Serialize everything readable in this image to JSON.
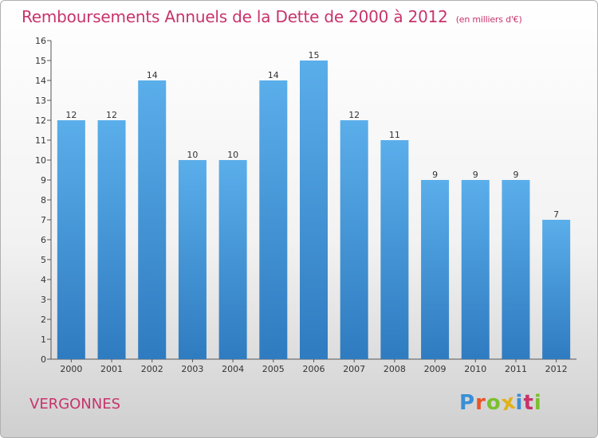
{
  "header": {
    "title": "Remboursements Annuels de la Dette de 2000 à 2012",
    "subtitle": "(en milliers d'€)"
  },
  "footer": {
    "commune": "VERGONNES",
    "brand_letters": [
      "P",
      "r",
      "o",
      "x",
      "i",
      "t",
      "i"
    ],
    "brand_colors": [
      "#3a8fd6",
      "#e8542a",
      "#7cbf2e",
      "#e0b21a",
      "#3a8fd6",
      "#c8336b",
      "#7cbf2e"
    ]
  },
  "colors": {
    "bar_top": "#5aaeea",
    "bar_bottom": "#2f7bc0",
    "title": "#c8336b"
  },
  "chart_data": {
    "type": "bar",
    "categories": [
      "2000",
      "2001",
      "2002",
      "2003",
      "2004",
      "2005",
      "2006",
      "2007",
      "2008",
      "2009",
      "2010",
      "2011",
      "2012"
    ],
    "values": [
      12,
      12,
      14,
      10,
      10,
      14,
      15,
      12,
      11,
      9,
      9,
      9,
      7
    ],
    "title": "Remboursements Annuels de la Dette de 2000 à 2012",
    "subtitle": "(en milliers d'€)",
    "xlabel": "",
    "ylabel": "",
    "ylim": [
      0,
      16
    ],
    "yticks": [
      0,
      1,
      2,
      3,
      4,
      5,
      6,
      7,
      8,
      9,
      10,
      11,
      12,
      13,
      14,
      15,
      16
    ],
    "grid": false,
    "legend": "none"
  }
}
